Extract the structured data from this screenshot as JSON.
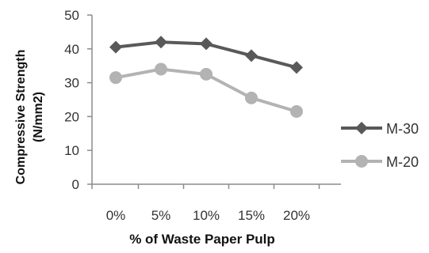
{
  "chart_data": {
    "type": "line",
    "categories": [
      "0%",
      "5%",
      "10%",
      "15%",
      "20%"
    ],
    "xlabel": "% of Waste Paper Pulp",
    "ylabel_line1": "Compressive Strength",
    "ylabel_line2": "(N/mm2)",
    "ylim": [
      0,
      50
    ],
    "yticks": [
      0,
      10,
      20,
      30,
      40,
      50
    ],
    "grid": false,
    "legend_position": "right",
    "series": [
      {
        "name": "M-30",
        "values": [
          40.5,
          42,
          41.5,
          38,
          34.5
        ],
        "color": "#595959",
        "marker": "diamond"
      },
      {
        "name": "M-20",
        "values": [
          31.5,
          34,
          32.5,
          25.5,
          21.5
        ],
        "color": "#b3b3b3",
        "marker": "circle"
      }
    ]
  }
}
